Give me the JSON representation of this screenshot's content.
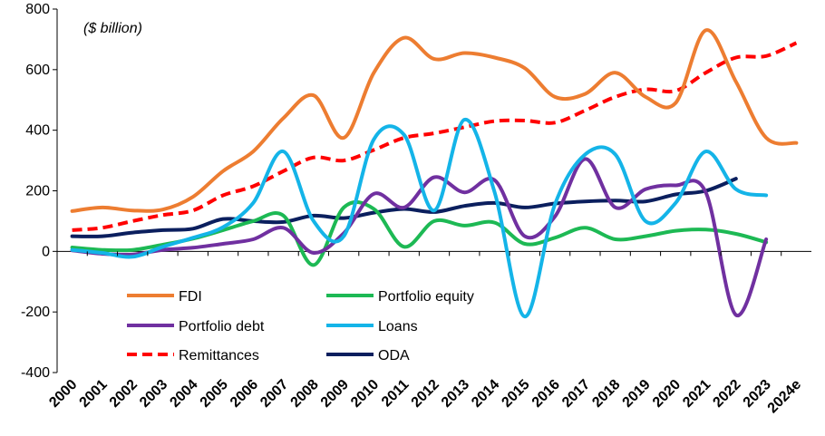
{
  "chart_data": {
    "type": "line",
    "title": "",
    "xlabel": "",
    "ylabel": "",
    "unit_note": "($ billion)",
    "categories": [
      "2000",
      "2001",
      "2002",
      "2003",
      "2004",
      "2005",
      "2006",
      "2007",
      "2008",
      "2009",
      "2010",
      "2011",
      "2012",
      "2013",
      "2014",
      "2015",
      "2016",
      "2017",
      "2018",
      "2019",
      "2020",
      "2021",
      "2022",
      "2023",
      "2024e"
    ],
    "ylim": [
      -400,
      800
    ],
    "yticks": [
      "-400",
      "-200",
      "0",
      "200",
      "400",
      "600",
      "800"
    ],
    "grid": false,
    "legend_position": "bottom-center",
    "series": [
      {
        "name": "FDI",
        "color": "#ED7D31",
        "dash": false,
        "values": [
          133,
          145,
          135,
          138,
          180,
          265,
          330,
          440,
          515,
          375,
          590,
          705,
          635,
          655,
          640,
          605,
          510,
          520,
          590,
          510,
          490,
          730,
          560,
          375,
          358
        ]
      },
      {
        "name": "Portfolio equity",
        "color": "#1DB954",
        "dash": false,
        "values": [
          13,
          5,
          5,
          22,
          42,
          70,
          100,
          118,
          -45,
          145,
          140,
          15,
          100,
          85,
          95,
          25,
          45,
          78,
          40,
          50,
          68,
          72,
          58,
          30,
          null
        ]
      },
      {
        "name": "Portfolio debt",
        "color": "#7030A0",
        "dash": false,
        "values": [
          3,
          -8,
          -10,
          5,
          12,
          25,
          40,
          78,
          -5,
          60,
          190,
          145,
          245,
          195,
          235,
          50,
          115,
          305,
          145,
          205,
          218,
          195,
          -210,
          40,
          null
        ]
      },
      {
        "name": "Loans",
        "color": "#14B4E8",
        "dash": false,
        "values": [
          5,
          -5,
          -18,
          15,
          45,
          80,
          160,
          330,
          100,
          50,
          370,
          385,
          135,
          435,
          195,
          -215,
          155,
          320,
          320,
          100,
          160,
          330,
          205,
          185,
          null
        ]
      },
      {
        "name": "Remittances",
        "color": "#FF0000",
        "dash": true,
        "values": [
          70,
          78,
          100,
          120,
          135,
          185,
          215,
          265,
          310,
          300,
          335,
          375,
          390,
          410,
          430,
          432,
          425,
          465,
          510,
          535,
          530,
          590,
          640,
          645,
          688
        ]
      },
      {
        "name": "ODA",
        "color": "#0B1F5E",
        "dash": false,
        "values": [
          50,
          50,
          62,
          70,
          75,
          107,
          100,
          97,
          118,
          110,
          128,
          140,
          130,
          150,
          160,
          145,
          158,
          165,
          168,
          165,
          188,
          200,
          240,
          null,
          null
        ]
      }
    ]
  }
}
